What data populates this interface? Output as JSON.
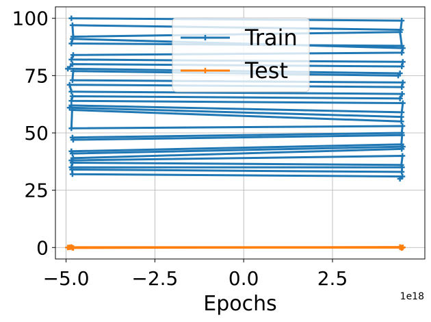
{
  "chart_data": {
    "type": "line",
    "xlabel": "Epochs",
    "ylabel": "",
    "x_offset_text": "1e18",
    "xlim": [
      -5.3e+18,
      5.1e+18
    ],
    "ylim": [
      -5,
      105
    ],
    "xticks": [
      -5e+18,
      -2.5e+18,
      0.0,
      2.5e+18
    ],
    "xtick_labels": [
      "−5.0",
      "−2.5",
      "0.0",
      "2.5"
    ],
    "yticks": [
      0,
      25,
      50,
      75,
      100
    ],
    "ytick_labels": [
      "0",
      "25",
      "50",
      "75",
      "100"
    ],
    "grid": true,
    "legend_position": "upper center",
    "series": [
      {
        "name": "Train",
        "color": "#1f77b4",
        "marker": "plus",
        "points": [
          [
            -4.85e+18,
            100
          ],
          [
            4.45e+18,
            99
          ],
          [
            4.42e+18,
            95
          ],
          [
            -4.82e+18,
            97
          ],
          [
            -4.8e+18,
            92
          ],
          [
            4.4e+18,
            94
          ],
          [
            4.45e+18,
            88
          ],
          [
            -4.85e+18,
            89
          ],
          [
            -4.82e+18,
            91
          ],
          [
            4.48e+18,
            87
          ],
          [
            4.45e+18,
            85
          ],
          [
            -4.8e+18,
            84
          ],
          [
            -4.85e+18,
            82
          ],
          [
            4.48e+18,
            81
          ],
          [
            4.45e+18,
            79
          ],
          [
            -4.82e+18,
            80
          ],
          [
            -4.95e+18,
            78
          ],
          [
            4.4e+18,
            76
          ],
          [
            4.35e+18,
            75
          ],
          [
            -4.8e+18,
            77
          ],
          [
            -4.82e+18,
            73
          ],
          [
            4.48e+18,
            72
          ],
          [
            4.45e+18,
            70
          ],
          [
            -4.9e+18,
            71
          ],
          [
            -4.85e+18,
            68
          ],
          [
            4.46e+18,
            67
          ],
          [
            4.4e+18,
            65
          ],
          [
            -4.82e+18,
            66
          ],
          [
            -4.85e+18,
            64
          ],
          [
            4.48e+18,
            63
          ],
          [
            4.45e+18,
            59
          ],
          [
            -4.85e+18,
            62
          ],
          [
            -4.9e+18,
            61
          ],
          [
            4.44e+18,
            57
          ],
          [
            4.44e+18,
            55
          ],
          [
            -4.83e+18,
            60
          ],
          [
            -4.85e+18,
            52
          ],
          [
            4.47e+18,
            53
          ],
          [
            4.45e+18,
            50
          ],
          [
            -4.82e+18,
            48
          ],
          [
            -4.8e+18,
            47
          ],
          [
            4.46e+18,
            49
          ],
          [
            4.44e+18,
            45
          ],
          [
            -4.85e+18,
            42
          ],
          [
            -4.82e+18,
            41
          ],
          [
            4.48e+18,
            44
          ],
          [
            4.45e+18,
            43
          ],
          [
            -4.8e+18,
            39
          ],
          [
            -4.85e+18,
            38
          ],
          [
            4.47e+18,
            40
          ],
          [
            4.44e+18,
            36
          ],
          [
            -4.82e+18,
            37
          ],
          [
            -4.85e+18,
            35
          ],
          [
            4.46e+18,
            35
          ],
          [
            4.45e+18,
            33
          ],
          [
            -4.83e+18,
            34
          ],
          [
            -4.82e+18,
            32
          ],
          [
            4.47e+18,
            31
          ],
          [
            4.4e+18,
            30
          ]
        ]
      },
      {
        "name": "Test",
        "color": "#ff7f0e",
        "marker": "plus",
        "points": [
          [
            -4.95e+18,
            0
          ],
          [
            -4.85e+18,
            0.2
          ],
          [
            -4.8e+18,
            -0.2
          ],
          [
            4.4e+18,
            0.2
          ],
          [
            4.45e+18,
            -0.2
          ],
          [
            4.48e+18,
            0.1
          ],
          [
            -4.9e+18,
            0.1
          ],
          [
            -4.82e+18,
            -0.1
          ],
          [
            4.42e+18,
            0
          ],
          [
            4.47e+18,
            0
          ]
        ]
      }
    ]
  }
}
